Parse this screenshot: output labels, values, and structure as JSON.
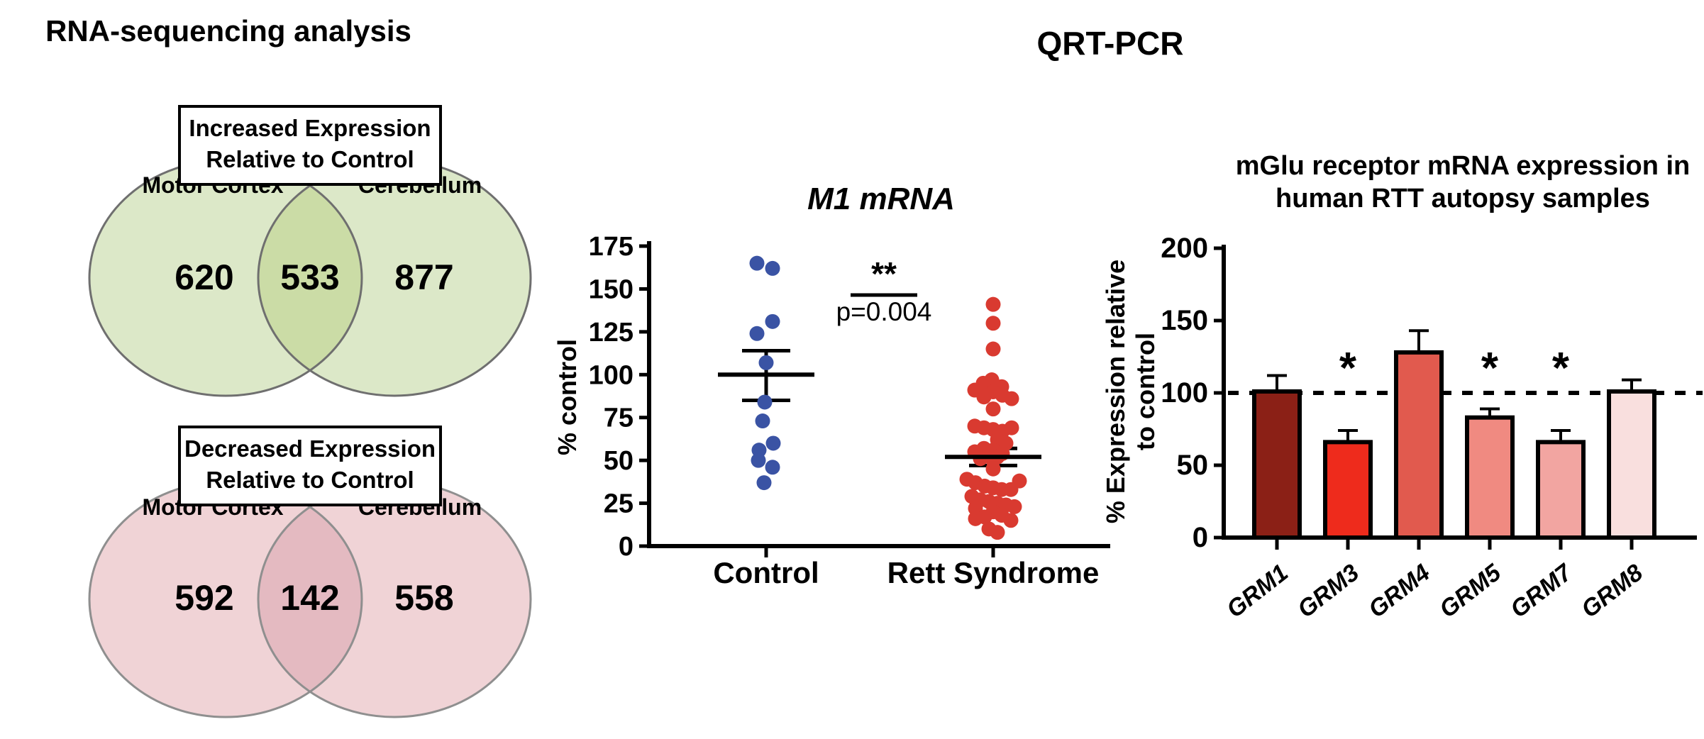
{
  "titles": {
    "left": "RNA-sequencing analysis",
    "middle": "QRT-PCR"
  },
  "venn_diagrams": [
    {
      "id": "increased",
      "box_lines": [
        "Increased Expression",
        "Relative to Control"
      ],
      "left_label": "Motor Cortex",
      "right_label": "Cerebellum",
      "left_value": "620",
      "overlap_value": "533",
      "right_value": "877",
      "fill": "#dce8c8",
      "overlap_fill": "#cbdca6",
      "stroke": "#6f6f6f"
    },
    {
      "id": "decreased",
      "box_lines": [
        "Decreased Expression",
        "Relative to Control"
      ],
      "left_label": "Motor Cortex",
      "right_label": "Cerebellum",
      "left_value": "592",
      "overlap_value": "142",
      "right_value": "558",
      "fill": "#f0d3d6",
      "overlap_fill": "#e4bac1",
      "stroke": "#8f8f8f"
    }
  ],
  "chart_data": [
    {
      "type": "scatter",
      "title": "M1 mRNA",
      "ylabel": "% control",
      "ylim": [
        0,
        175
      ],
      "yticks": [
        0,
        25,
        50,
        75,
        100,
        125,
        150,
        175
      ],
      "categories": [
        "Control",
        "Rett Syndrome"
      ],
      "significance": {
        "stars": "**",
        "label": "p=0.004"
      },
      "series": [
        {
          "name": "Control",
          "color": "#3a53a4",
          "mean": 100,
          "err_low": 85,
          "err_high": 114,
          "points": [
            [
              -13,
              165
            ],
            [
              9,
              162
            ],
            [
              9,
              131
            ],
            [
              -13,
              124
            ],
            [
              0,
              107
            ],
            [
              -2,
              84
            ],
            [
              -5,
              73
            ],
            [
              10,
              60
            ],
            [
              -10,
              56
            ],
            [
              -11,
              50
            ],
            [
              9,
              46
            ],
            [
              -3,
              37
            ]
          ]
        },
        {
          "name": "Rett Syndrome",
          "color": "#d93a30",
          "mean": 52,
          "err_low": 47,
          "err_high": 57,
          "points": [
            [
              0,
              141
            ],
            [
              0,
              130
            ],
            [
              0,
              115
            ],
            [
              -2,
              97
            ],
            [
              -14,
              95
            ],
            [
              12,
              93
            ],
            [
              -26,
              91
            ],
            [
              0,
              90
            ],
            [
              13,
              88
            ],
            [
              -13,
              87
            ],
            [
              26,
              86
            ],
            [
              0,
              80
            ],
            [
              -26,
              70
            ],
            [
              -13,
              69
            ],
            [
              26,
              69
            ],
            [
              0,
              68
            ],
            [
              13,
              67
            ],
            [
              6,
              62
            ],
            [
              18,
              60
            ],
            [
              -13,
              57
            ],
            [
              0,
              56
            ],
            [
              -26,
              55
            ],
            [
              13,
              54
            ],
            [
              -6,
              53
            ],
            [
              6,
              52
            ],
            [
              -18,
              51
            ],
            [
              0,
              50
            ],
            [
              0,
              45
            ],
            [
              -37,
              39
            ],
            [
              37,
              38
            ],
            [
              -25,
              37
            ],
            [
              -12,
              35
            ],
            [
              0,
              34
            ],
            [
              12,
              33
            ],
            [
              25,
              33
            ],
            [
              -30,
              29
            ],
            [
              -18,
              27
            ],
            [
              -6,
              26
            ],
            [
              6,
              25
            ],
            [
              18,
              24
            ],
            [
              30,
              23
            ],
            [
              -25,
              22
            ],
            [
              0,
              20
            ],
            [
              12,
              18
            ],
            [
              -12,
              17
            ],
            [
              -25,
              16
            ],
            [
              25,
              15
            ],
            [
              -6,
              10
            ],
            [
              6,
              8
            ]
          ]
        }
      ]
    },
    {
      "type": "bar",
      "title_lines": [
        "mGlu receptor mRNA expression in",
        "human RTT autopsy samples"
      ],
      "ylabel_lines": [
        "% Expression relative",
        "to control"
      ],
      "ylim": [
        0,
        200
      ],
      "yticks": [
        0,
        50,
        100,
        150,
        200
      ],
      "reference_line": 100,
      "categories": [
        "GRM1",
        "GRM3",
        "GRM4",
        "GRM5",
        "GRM7",
        "GRM8"
      ],
      "values": [
        101,
        66,
        128,
        83,
        66,
        101
      ],
      "error_high": [
        112,
        74,
        143,
        89,
        74,
        109
      ],
      "sig_markers": [
        "",
        "*",
        "",
        "*",
        "*",
        ""
      ],
      "bar_colors": [
        "#8b2016",
        "#ee2b1c",
        "#e15a4e",
        "#f08a81",
        "#f2a5a1",
        "#f9dfde"
      ]
    }
  ]
}
